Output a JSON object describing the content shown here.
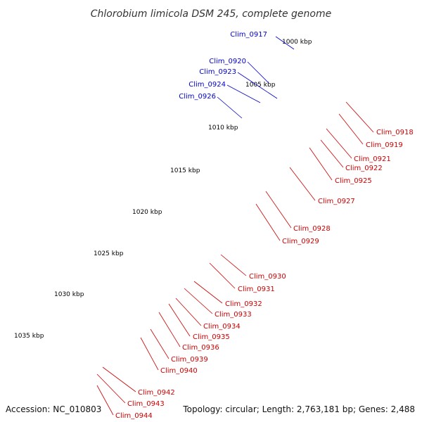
{
  "title": "Chlorobium limicola DSM 245, complete genome",
  "footer": {
    "accession": "Accession: NC_010803",
    "topology": "Topology: circular; Length: 2,763,181 bp; Genes: 2,488"
  },
  "colors": {
    "backbone": "#555555",
    "forward_label": "#0000cc",
    "reverse_label": "#cc0000",
    "red": "#ee1111",
    "blue": "#1111ee",
    "magenta": "#ee2299",
    "gray": "#777777",
    "lightgray": "#bbbbbb",
    "orange": "#ff9900",
    "olive": "#669933",
    "steelblue": "#4477aa",
    "ticks": "#228822"
  },
  "ticks": [
    "1000 kbp",
    "1005 kbp",
    "1010 kbp",
    "1015 kbp",
    "1020 kbp",
    "1025 kbp",
    "1030 kbp",
    "1035 kbp"
  ],
  "labels_forward": [
    "Clim_0917",
    "Clim_0920",
    "Clim_0923",
    "Clim_0924",
    "Clim_0926"
  ],
  "labels_reverse": [
    "Clim_0918",
    "Clim_0919",
    "Clim_0921",
    "Clim_0922",
    "Clim_0925",
    "Clim_0927",
    "Clim_0928",
    "Clim_0929",
    "Clim_0930",
    "Clim_0931",
    "Clim_0932",
    "Clim_0933",
    "Clim_0934",
    "Clim_0935",
    "Clim_0936",
    "Clim_0939",
    "Clim_0940",
    "Clim_0942",
    "Clim_0943",
    "Clim_0944"
  ]
}
